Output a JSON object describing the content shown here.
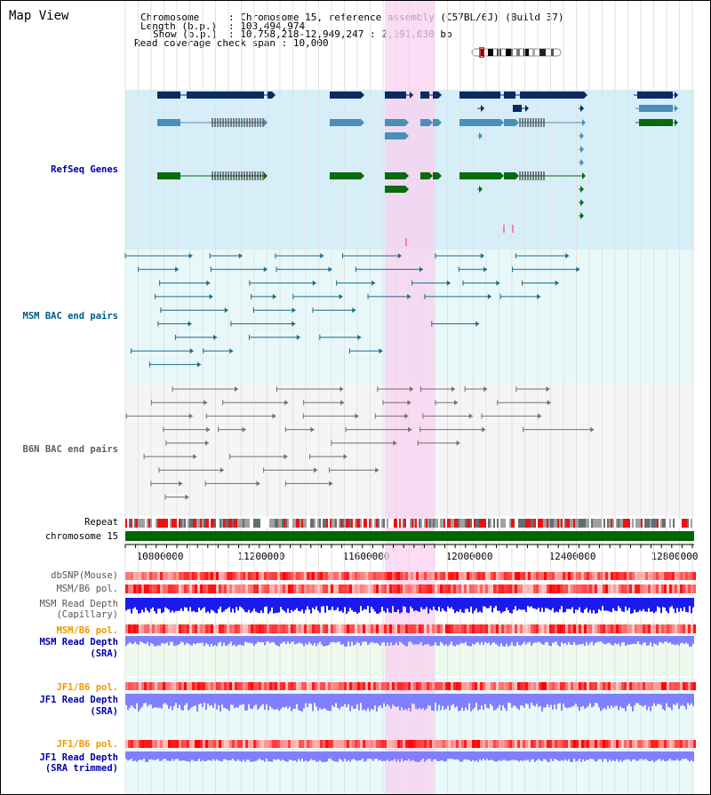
{
  "title": "Map View",
  "header": {
    "chromosome_label": "Chromosome",
    "chromosome_value": "Chromosome 15, reference assembly (C57BL/6J) (Build 37)",
    "length_label": "Length (b.p.)",
    "length_value": "103,494,974",
    "show_label": "Show (b.p.)",
    "show_value": "10,758,218-12,949,247 : 2,191,030 bp",
    "coverage_label": "Read coverage check span",
    "coverage_value": "10,000"
  },
  "tracks": {
    "refseq": "RefSeq Genes",
    "msm_bac": "MSM BAC end pairs",
    "b6n_bac": "B6N BAC end pairs",
    "repeat": "Repeat",
    "chromosome": "chromosome 15",
    "dbsnp": "dbSNP(Mouse)",
    "msm_b6_pol": "MSM/B6 pol.",
    "msm_depth_cap_1": "MSM Read Depth",
    "msm_depth_cap_2": "(Capillary)",
    "msm_b6_pol_sra": "MSM/B6 pol.",
    "msm_depth_sra_1": "MSM Read Depth",
    "msm_depth_sra_2": "(SRA)",
    "jf1_b6_pol": "JF1/B6 pol.",
    "jf1_depth_sra_1": "JF1 Read Depth",
    "jf1_depth_sra_2": "(SRA)",
    "jf1_b6_pol_trim": "JF1/B6 pol.",
    "jf1_depth_trim_1": "JF1 Read Depth",
    "jf1_depth_trim_2": "(SRA trimmed)"
  },
  "axis_ticks": [
    "10800000",
    "11200000",
    "11600000",
    "12000000",
    "12400000",
    "12800000"
  ],
  "colors": {
    "refseq_bg": "#d6eef8",
    "msm_bac_bg": "#e8f8f8",
    "b6n_bac_bg": "#f5f5f8",
    "highlight": "#f8d0f0",
    "gene_dark": "#0a2a60",
    "gene_mid": "#4a8fb8",
    "gene_green": "#0a6a10",
    "msm_bac": "#1a6a8a",
    "b6n_bac": "#707070",
    "chromosome_bar": "#006600",
    "snp_red": "#ee2222",
    "depth_blue": "#1a1aee",
    "depth_sra": "#8080ff",
    "label_blue": "#0000aa",
    "label_teal": "#005a80",
    "label_gray": "#606060",
    "label_orange": "#ee9900"
  }
}
